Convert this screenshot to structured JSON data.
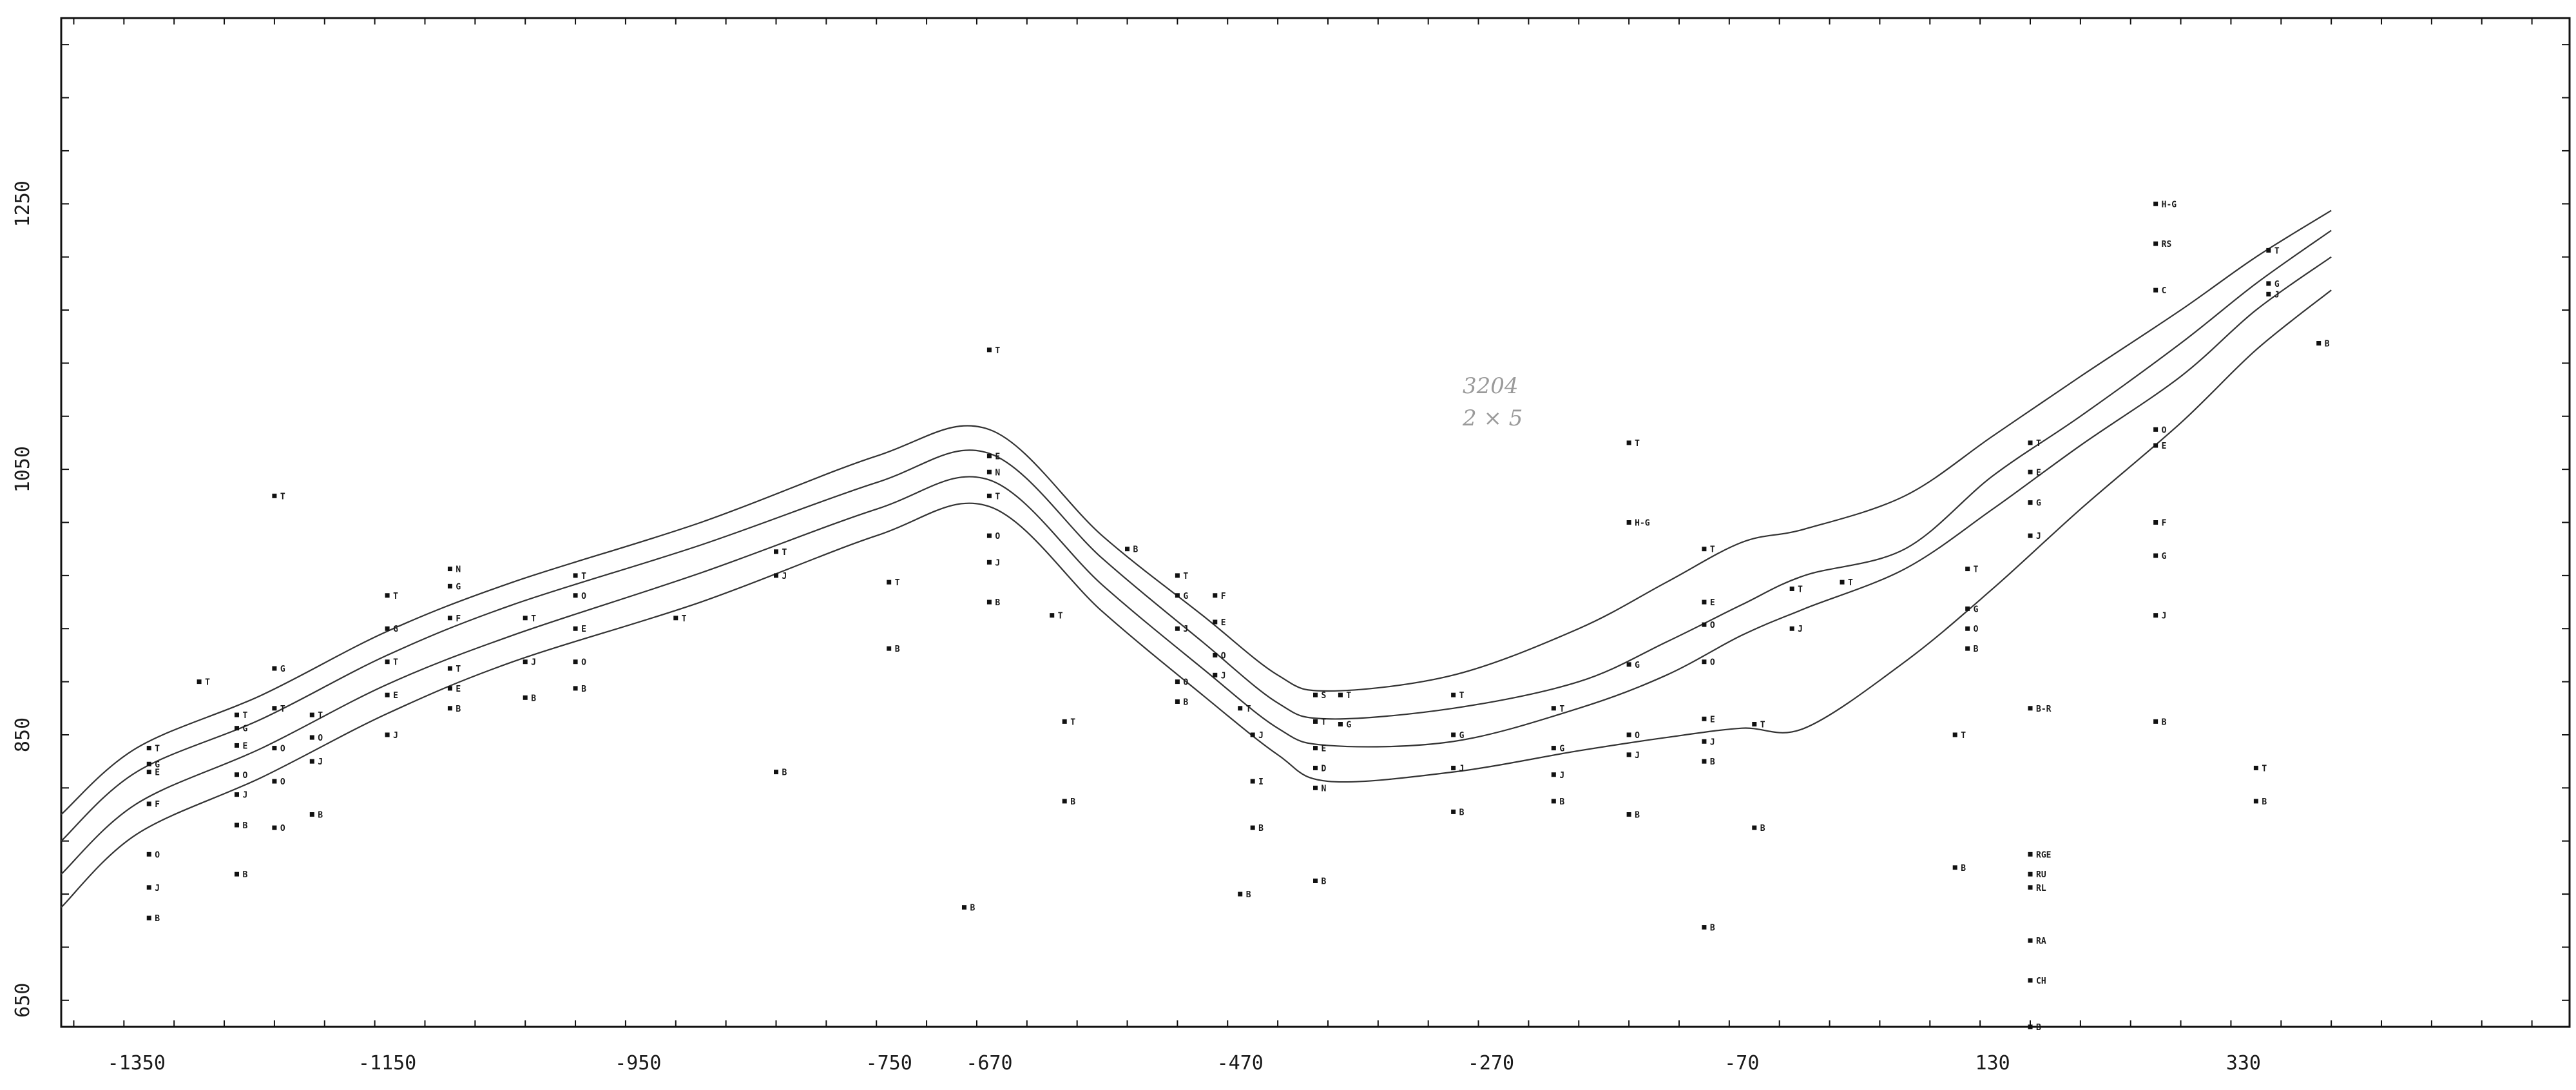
{
  "chart_data": {
    "type": "scatter",
    "xlim": [
      -1410,
      590
    ],
    "ylim": [
      630,
      1390
    ],
    "x_ticks": [
      -1350,
      -1150,
      -950,
      -750,
      -670,
      -470,
      -270,
      -70,
      130,
      330
    ],
    "x_tick_labels": [
      "-1350",
      "-1150",
      "-950",
      "-750",
      "-670",
      "-470",
      "-270",
      "-70",
      "130",
      "330"
    ],
    "y_ticks": [
      650,
      850,
      1050,
      1250
    ],
    "y_tick_labels": [
      "650",
      "850",
      "1050",
      "1250"
    ],
    "grid": false,
    "handwritten_note": [
      "3204",
      "2 × 5"
    ],
    "curves": [
      {
        "points": [
          [
            -1410,
            790
          ],
          [
            -1350,
            840
          ],
          [
            -1250,
            880
          ],
          [
            -1150,
            928
          ],
          [
            -1050,
            965
          ],
          [
            -900,
            1010
          ],
          [
            -760,
            1060
          ],
          [
            -670,
            1080
          ],
          [
            -580,
            1000
          ],
          [
            -500,
            940
          ],
          [
            -440,
            895
          ],
          [
            -400,
            883
          ],
          [
            -300,
            895
          ],
          [
            -200,
            930
          ],
          [
            -130,
            965
          ],
          [
            -70,
            995
          ],
          [
            -20,
            1005
          ],
          [
            60,
            1030
          ],
          [
            130,
            1075
          ],
          [
            200,
            1120
          ],
          [
            280,
            1170
          ],
          [
            340,
            1210
          ],
          [
            400,
            1245
          ]
        ]
      },
      {
        "points": [
          [
            -1410,
            770
          ],
          [
            -1350,
            822
          ],
          [
            -1250,
            862
          ],
          [
            -1150,
            910
          ],
          [
            -1050,
            948
          ],
          [
            -900,
            993
          ],
          [
            -760,
            1040
          ],
          [
            -670,
            1062
          ],
          [
            -580,
            983
          ],
          [
            -500,
            920
          ],
          [
            -440,
            874
          ],
          [
            -400,
            862
          ],
          [
            -300,
            870
          ],
          [
            -200,
            890
          ],
          [
            -130,
            920
          ],
          [
            -70,
            948
          ],
          [
            -20,
            970
          ],
          [
            60,
            990
          ],
          [
            130,
            1045
          ],
          [
            200,
            1090
          ],
          [
            280,
            1145
          ],
          [
            340,
            1190
          ],
          [
            400,
            1230
          ]
        ]
      },
      {
        "points": [
          [
            -1410,
            745
          ],
          [
            -1350,
            798
          ],
          [
            -1250,
            840
          ],
          [
            -1150,
            888
          ],
          [
            -1050,
            925
          ],
          [
            -900,
            972
          ],
          [
            -760,
            1020
          ],
          [
            -670,
            1042
          ],
          [
            -580,
            963
          ],
          [
            -500,
            900
          ],
          [
            -440,
            855
          ],
          [
            -400,
            842
          ],
          [
            -300,
            845
          ],
          [
            -200,
            870
          ],
          [
            -130,
            895
          ],
          [
            -70,
            925
          ],
          [
            -20,
            945
          ],
          [
            60,
            975
          ],
          [
            130,
            1020
          ],
          [
            200,
            1068
          ],
          [
            280,
            1120
          ],
          [
            340,
            1170
          ],
          [
            400,
            1210
          ]
        ]
      },
      {
        "points": [
          [
            -1410,
            720
          ],
          [
            -1350,
            775
          ],
          [
            -1250,
            818
          ],
          [
            -1150,
            866
          ],
          [
            -1050,
            905
          ],
          [
            -900,
            950
          ],
          [
            -760,
            1000
          ],
          [
            -670,
            1022
          ],
          [
            -580,
            943
          ],
          [
            -500,
            880
          ],
          [
            -440,
            835
          ],
          [
            -400,
            815
          ],
          [
            -300,
            822
          ],
          [
            -200,
            838
          ],
          [
            -130,
            848
          ],
          [
            -70,
            855
          ],
          [
            -20,
            855
          ],
          [
            60,
            905
          ],
          [
            130,
            960
          ],
          [
            200,
            1020
          ],
          [
            280,
            1085
          ],
          [
            340,
            1140
          ],
          [
            400,
            1185
          ]
        ]
      }
    ],
    "points": [
      {
        "x": -1340,
        "y": 840,
        "label": "T"
      },
      {
        "x": -1340,
        "y": 828,
        "label": "G"
      },
      {
        "x": -1340,
        "y": 822,
        "label": "E"
      },
      {
        "x": -1340,
        "y": 798,
        "label": "F"
      },
      {
        "x": -1340,
        "y": 760,
        "label": "O"
      },
      {
        "x": -1340,
        "y": 735,
        "label": "J"
      },
      {
        "x": -1340,
        "y": 712,
        "label": "B"
      },
      {
        "x": -1300,
        "y": 890,
        "label": "T"
      },
      {
        "x": -1270,
        "y": 865,
        "label": "T"
      },
      {
        "x": -1270,
        "y": 855,
        "label": "G"
      },
      {
        "x": -1270,
        "y": 842,
        "label": "E"
      },
      {
        "x": -1270,
        "y": 820,
        "label": "O"
      },
      {
        "x": -1270,
        "y": 805,
        "label": "J"
      },
      {
        "x": -1270,
        "y": 782,
        "label": "B"
      },
      {
        "x": -1270,
        "y": 745,
        "label": "B"
      },
      {
        "x": -1240,
        "y": 1030,
        "label": "T"
      },
      {
        "x": -1240,
        "y": 900,
        "label": "G"
      },
      {
        "x": -1240,
        "y": 870,
        "label": "T"
      },
      {
        "x": -1240,
        "y": 840,
        "label": "O"
      },
      {
        "x": -1240,
        "y": 815,
        "label": "O"
      },
      {
        "x": -1240,
        "y": 780,
        "label": "O"
      },
      {
        "x": -1210,
        "y": 865,
        "label": "T"
      },
      {
        "x": -1210,
        "y": 848,
        "label": "O"
      },
      {
        "x": -1210,
        "y": 830,
        "label": "J"
      },
      {
        "x": -1210,
        "y": 790,
        "label": "B"
      },
      {
        "x": -1150,
        "y": 955,
        "label": "T"
      },
      {
        "x": -1150,
        "y": 930,
        "label": "G"
      },
      {
        "x": -1150,
        "y": 905,
        "label": "T"
      },
      {
        "x": -1150,
        "y": 880,
        "label": "E"
      },
      {
        "x": -1150,
        "y": 850,
        "label": "J"
      },
      {
        "x": -1100,
        "y": 975,
        "label": "N"
      },
      {
        "x": -1100,
        "y": 962,
        "label": "G"
      },
      {
        "x": -1100,
        "y": 938,
        "label": "F"
      },
      {
        "x": -1100,
        "y": 900,
        "label": "T"
      },
      {
        "x": -1100,
        "y": 885,
        "label": "E"
      },
      {
        "x": -1100,
        "y": 870,
        "label": "B"
      },
      {
        "x": -1040,
        "y": 938,
        "label": "T"
      },
      {
        "x": -1040,
        "y": 905,
        "label": "J"
      },
      {
        "x": -1040,
        "y": 878,
        "label": "B"
      },
      {
        "x": -1000,
        "y": 970,
        "label": "T"
      },
      {
        "x": -1000,
        "y": 955,
        "label": "O"
      },
      {
        "x": -1000,
        "y": 930,
        "label": "E"
      },
      {
        "x": -1000,
        "y": 905,
        "label": "O"
      },
      {
        "x": -1000,
        "y": 885,
        "label": "B"
      },
      {
        "x": -920,
        "y": 938,
        "label": "T"
      },
      {
        "x": -840,
        "y": 988,
        "label": "T"
      },
      {
        "x": -840,
        "y": 970,
        "label": "J"
      },
      {
        "x": -840,
        "y": 822,
        "label": "B"
      },
      {
        "x": -750,
        "y": 965,
        "label": "T"
      },
      {
        "x": -750,
        "y": 915,
        "label": "B"
      },
      {
        "x": -670,
        "y": 1140,
        "label": "T"
      },
      {
        "x": -670,
        "y": 1060,
        "label": "E"
      },
      {
        "x": -670,
        "y": 1048,
        "label": "N"
      },
      {
        "x": -670,
        "y": 1030,
        "label": "T"
      },
      {
        "x": -670,
        "y": 1000,
        "label": "O"
      },
      {
        "x": -670,
        "y": 980,
        "label": "J"
      },
      {
        "x": -670,
        "y": 950,
        "label": "B"
      },
      {
        "x": -620,
        "y": 940,
        "label": "T"
      },
      {
        "x": -610,
        "y": 860,
        "label": "T"
      },
      {
        "x": -610,
        "y": 800,
        "label": "B"
      },
      {
        "x": -690,
        "y": 720,
        "label": "B"
      },
      {
        "x": -560,
        "y": 990,
        "label": "B"
      },
      {
        "x": -520,
        "y": 970,
        "label": "T"
      },
      {
        "x": -520,
        "y": 955,
        "label": "G"
      },
      {
        "x": -520,
        "y": 930,
        "label": "J"
      },
      {
        "x": -520,
        "y": 890,
        "label": "O"
      },
      {
        "x": -520,
        "y": 875,
        "label": "B"
      },
      {
        "x": -490,
        "y": 955,
        "label": "F"
      },
      {
        "x": -490,
        "y": 935,
        "label": "E"
      },
      {
        "x": -490,
        "y": 910,
        "label": "O"
      },
      {
        "x": -490,
        "y": 895,
        "label": "J"
      },
      {
        "x": -470,
        "y": 870,
        "label": "T"
      },
      {
        "x": -460,
        "y": 850,
        "label": "J"
      },
      {
        "x": -460,
        "y": 815,
        "label": "I"
      },
      {
        "x": -460,
        "y": 780,
        "label": "B"
      },
      {
        "x": -470,
        "y": 730,
        "label": "B"
      },
      {
        "x": -410,
        "y": 880,
        "label": "S"
      },
      {
        "x": -410,
        "y": 860,
        "label": "T"
      },
      {
        "x": -410,
        "y": 840,
        "label": "E"
      },
      {
        "x": -410,
        "y": 825,
        "label": "D"
      },
      {
        "x": -410,
        "y": 810,
        "label": "N"
      },
      {
        "x": -410,
        "y": 740,
        "label": "B"
      },
      {
        "x": -390,
        "y": 880,
        "label": "T"
      },
      {
        "x": -390,
        "y": 858,
        "label": "G"
      },
      {
        "x": -300,
        "y": 880,
        "label": "T"
      },
      {
        "x": -300,
        "y": 850,
        "label": "G"
      },
      {
        "x": -300,
        "y": 825,
        "label": "J"
      },
      {
        "x": -300,
        "y": 792,
        "label": "B"
      },
      {
        "x": -220,
        "y": 870,
        "label": "T"
      },
      {
        "x": -220,
        "y": 840,
        "label": "G"
      },
      {
        "x": -220,
        "y": 820,
        "label": "J"
      },
      {
        "x": -220,
        "y": 800,
        "label": "B"
      },
      {
        "x": -160,
        "y": 1070,
        "label": "T"
      },
      {
        "x": -160,
        "y": 1010,
        "label": "H-G"
      },
      {
        "x": -160,
        "y": 903,
        "label": "G"
      },
      {
        "x": -160,
        "y": 850,
        "label": "O"
      },
      {
        "x": -160,
        "y": 835,
        "label": "J"
      },
      {
        "x": -160,
        "y": 790,
        "label": "B"
      },
      {
        "x": -100,
        "y": 990,
        "label": "T"
      },
      {
        "x": -100,
        "y": 950,
        "label": "E"
      },
      {
        "x": -100,
        "y": 933,
        "label": "O"
      },
      {
        "x": -100,
        "y": 905,
        "label": "O"
      },
      {
        "x": -100,
        "y": 862,
        "label": "E"
      },
      {
        "x": -100,
        "y": 845,
        "label": "J"
      },
      {
        "x": -100,
        "y": 830,
        "label": "B"
      },
      {
        "x": -100,
        "y": 705,
        "label": "B"
      },
      {
        "x": -60,
        "y": 858,
        "label": "T"
      },
      {
        "x": -60,
        "y": 780,
        "label": "B"
      },
      {
        "x": -30,
        "y": 960,
        "label": "T"
      },
      {
        "x": -30,
        "y": 930,
        "label": "J"
      },
      {
        "x": 10,
        "y": 965,
        "label": "T"
      },
      {
        "x": 110,
        "y": 975,
        "label": "T"
      },
      {
        "x": 110,
        "y": 945,
        "label": "G"
      },
      {
        "x": 110,
        "y": 930,
        "label": "O"
      },
      {
        "x": 110,
        "y": 915,
        "label": "B"
      },
      {
        "x": 100,
        "y": 850,
        "label": "T"
      },
      {
        "x": 100,
        "y": 750,
        "label": "B"
      },
      {
        "x": 160,
        "y": 1070,
        "label": "T"
      },
      {
        "x": 160,
        "y": 1048,
        "label": "E"
      },
      {
        "x": 160,
        "y": 1025,
        "label": "G"
      },
      {
        "x": 160,
        "y": 1000,
        "label": "J"
      },
      {
        "x": 160,
        "y": 870,
        "label": "B-R"
      },
      {
        "x": 160,
        "y": 760,
        "label": "RGE"
      },
      {
        "x": 160,
        "y": 745,
        "label": "RU"
      },
      {
        "x": 160,
        "y": 735,
        "label": "RL"
      },
      {
        "x": 160,
        "y": 695,
        "label": "RA"
      },
      {
        "x": 160,
        "y": 665,
        "label": "CH"
      },
      {
        "x": 160,
        "y": 630,
        "label": "B"
      },
      {
        "x": 260,
        "y": 1250,
        "label": "H-G"
      },
      {
        "x": 260,
        "y": 1220,
        "label": "RS"
      },
      {
        "x": 260,
        "y": 1185,
        "label": "C"
      },
      {
        "x": 260,
        "y": 1080,
        "label": "O"
      },
      {
        "x": 260,
        "y": 1068,
        "label": "E"
      },
      {
        "x": 260,
        "y": 1010,
        "label": "F"
      },
      {
        "x": 260,
        "y": 985,
        "label": "G"
      },
      {
        "x": 260,
        "y": 940,
        "label": "J"
      },
      {
        "x": 260,
        "y": 860,
        "label": "B"
      },
      {
        "x": 350,
        "y": 1215,
        "label": "T"
      },
      {
        "x": 350,
        "y": 1190,
        "label": "G"
      },
      {
        "x": 350,
        "y": 1182,
        "label": "J"
      },
      {
        "x": 390,
        "y": 1145,
        "label": "B"
      },
      {
        "x": 340,
        "y": 825,
        "label": "T"
      },
      {
        "x": 340,
        "y": 800,
        "label": "B"
      }
    ]
  }
}
